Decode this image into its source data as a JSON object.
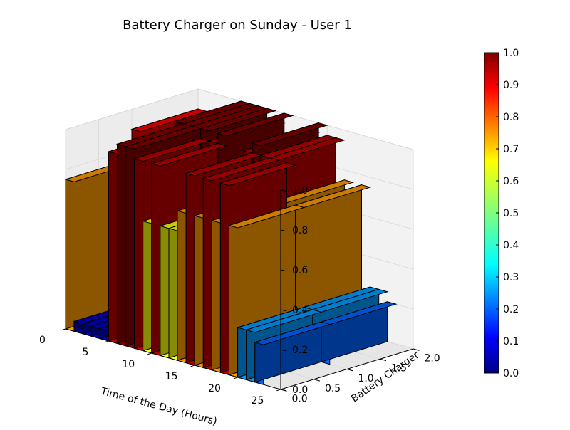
{
  "chart_data": {
    "type": "bar3d",
    "title": "Battery Charger on Sunday - User 1",
    "xlabel": "Time of the Day (Hours)",
    "ylabel": "Battery Charger",
    "x_ticks": [
      "0",
      "5",
      "10",
      "15",
      "20",
      "25"
    ],
    "y_ticks": [
      "0.0",
      "0.5",
      "1.0",
      "1.5",
      "2.0"
    ],
    "z_ticks": [
      "0.0",
      "0.2",
      "0.4",
      "0.6",
      "0.8",
      "1.0"
    ],
    "xlim": [
      0,
      25
    ],
    "ylim": [
      0,
      2
    ],
    "zlim": [
      0,
      1
    ],
    "colormap": "jet",
    "colorbar_ticks": [
      "0.0",
      "0.1",
      "0.2",
      "0.3",
      "0.4",
      "0.5",
      "0.6",
      "0.7",
      "0.8",
      "0.9",
      "1.0"
    ],
    "colorbar_range": [
      0,
      1
    ],
    "grid": true,
    "series": [
      {
        "values": [
          [
            0,
            0,
            0.75
          ],
          [
            0,
            1,
            0.9
          ],
          [
            1,
            0,
            0.05
          ],
          [
            1,
            1,
            0.0
          ],
          [
            2,
            0,
            0.05
          ],
          [
            3,
            0,
            0.05
          ],
          [
            4,
            0,
            0.05
          ],
          [
            5,
            0,
            0.95
          ],
          [
            5,
            1,
            1.0
          ],
          [
            6,
            0,
            1.0
          ],
          [
            6,
            1,
            1.0
          ],
          [
            7,
            0,
            1.0
          ],
          [
            7,
            1,
            1.0
          ],
          [
            8,
            0,
            0.95
          ],
          [
            8,
            1,
            1.0
          ],
          [
            9,
            0,
            0.65
          ],
          [
            9,
            1,
            0.95
          ],
          [
            10,
            0,
            0.95
          ],
          [
            10,
            1,
            1.0
          ],
          [
            11,
            0,
            0.65
          ],
          [
            12,
            0,
            0.65
          ],
          [
            13,
            0,
            0.75
          ],
          [
            13,
            1,
            0.95
          ],
          [
            14,
            0,
            0.95
          ],
          [
            14,
            1,
            1.0
          ],
          [
            15,
            0,
            0.75
          ],
          [
            15,
            1,
            0.95
          ],
          [
            16,
            0,
            0.95
          ],
          [
            16,
            1,
            0.95
          ],
          [
            17,
            0,
            0.75
          ],
          [
            17,
            1,
            0.75
          ],
          [
            18,
            0,
            0.95
          ],
          [
            19,
            0,
            0.75
          ],
          [
            19,
            1,
            0.75
          ],
          [
            20,
            0,
            0.25
          ],
          [
            20,
            1,
            0.25
          ],
          [
            21,
            0,
            0.25
          ],
          [
            21,
            1,
            0.25
          ],
          [
            22,
            0,
            0.2
          ],
          [
            22,
            1,
            0.2
          ]
        ]
      }
    ]
  }
}
